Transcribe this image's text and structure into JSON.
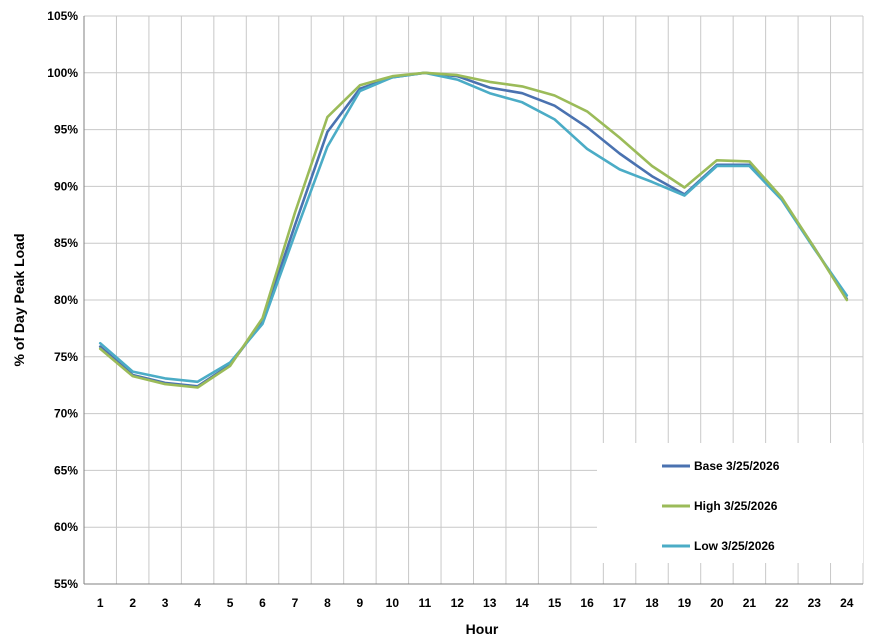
{
  "chart_data": {
    "type": "line",
    "xlabel": "Hour",
    "ylabel": "% of Day Peak Load",
    "x": [
      1,
      2,
      3,
      4,
      5,
      6,
      7,
      8,
      9,
      10,
      11,
      12,
      13,
      14,
      15,
      16,
      17,
      18,
      19,
      20,
      21,
      22,
      23,
      24
    ],
    "xlim": [
      0.5,
      24.5
    ],
    "ylim": [
      55,
      105
    ],
    "yticks": [
      55,
      60,
      65,
      70,
      75,
      80,
      85,
      90,
      95,
      100,
      105
    ],
    "ytick_labels": [
      "55%",
      "60%",
      "65%",
      "70%",
      "75%",
      "80%",
      "85%",
      "90%",
      "95%",
      "100%",
      "105%"
    ],
    "grid": true,
    "legend_position": "bottom-right",
    "series": [
      {
        "name": "Base 3/25/2026",
        "color": "#4a72b0",
        "values": [
          75.9,
          73.4,
          72.7,
          72.4,
          74.3,
          78.1,
          86.6,
          94.8,
          98.6,
          99.6,
          100.0,
          99.7,
          98.7,
          98.2,
          97.1,
          95.2,
          92.9,
          90.9,
          89.3,
          91.9,
          91.9,
          88.9,
          84.6,
          80.1
        ]
      },
      {
        "name": "High 3/25/2026",
        "color": "#9bbb59",
        "values": [
          75.7,
          73.3,
          72.6,
          72.3,
          74.2,
          78.4,
          87.7,
          96.1,
          98.9,
          99.7,
          100.0,
          99.8,
          99.2,
          98.8,
          98.0,
          96.6,
          94.3,
          91.8,
          89.9,
          92.3,
          92.2,
          89.0,
          84.6,
          80.0
        ]
      },
      {
        "name": "Low 3/25/2026",
        "color": "#4bacc6",
        "values": [
          76.2,
          73.7,
          73.1,
          72.8,
          74.5,
          77.9,
          85.8,
          93.5,
          98.4,
          99.6,
          100.0,
          99.4,
          98.2,
          97.4,
          95.9,
          93.3,
          91.5,
          90.4,
          89.2,
          91.8,
          91.8,
          88.8,
          84.5,
          80.4
        ]
      }
    ]
  }
}
